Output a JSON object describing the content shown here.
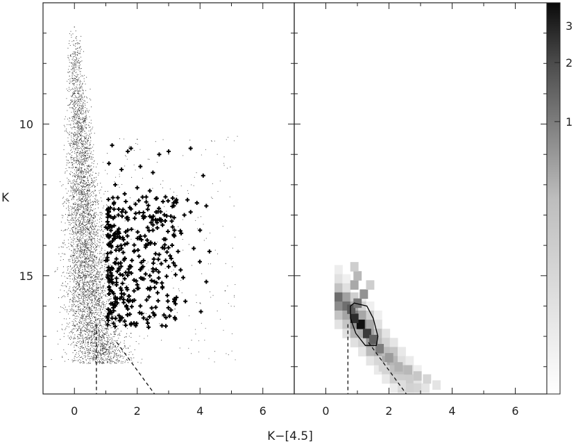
{
  "chart_data": [
    {
      "type": "scatter",
      "panel": "left",
      "title": "",
      "xlabel": "K−[4.5]",
      "ylabel": "K",
      "xlim": [
        -1,
        7
      ],
      "ylim": [
        18.9,
        6.0
      ],
      "y_inverted": true,
      "x_ticks": [
        0,
        2,
        4,
        6
      ],
      "y_ticks": [
        10,
        15
      ],
      "grid": false,
      "series": [
        {
          "marker": "small-dot",
          "color": "#555555",
          "description_points": [
            [
              0.0,
              6.8
            ],
            [
              0.1,
              7.5
            ],
            [
              -0.1,
              8.2
            ],
            [
              0.2,
              8.8
            ],
            [
              0.0,
              9.4
            ],
            [
              0.3,
              9.9
            ],
            [
              0.1,
              10.4
            ],
            [
              0.4,
              10.8
            ],
            [
              -0.2,
              11.2
            ],
            [
              0.2,
              11.6
            ],
            [
              0.5,
              12.0
            ],
            [
              0.0,
              12.4
            ],
            [
              0.3,
              12.8
            ],
            [
              0.6,
              13.1
            ],
            [
              -0.3,
              13.5
            ],
            [
              0.1,
              13.8
            ],
            [
              0.4,
              14.1
            ],
            [
              0.7,
              14.4
            ],
            [
              0.0,
              14.7
            ],
            [
              0.3,
              15.0
            ],
            [
              0.6,
              15.3
            ],
            [
              -0.2,
              15.6
            ],
            [
              0.2,
              15.9
            ],
            [
              0.5,
              16.2
            ],
            [
              0.8,
              16.5
            ],
            [
              0.1,
              16.8
            ],
            [
              0.4,
              17.1
            ],
            [
              0.9,
              17.4
            ],
            [
              1.2,
              17.2
            ],
            [
              1.8,
              16.9
            ],
            [
              2.5,
              16.4
            ],
            [
              3.2,
              16.1
            ],
            [
              4.0,
              15.9
            ],
            [
              4.8,
              15.5
            ],
            [
              2.0,
              10.5
            ],
            [
              3.0,
              11.0
            ]
          ]
        },
        {
          "marker": "plus",
          "color": "#000000",
          "points": [
            [
              1.2,
              10.7
            ],
            [
              1.7,
              10.9
            ],
            [
              1.8,
              10.8
            ],
            [
              2.7,
              11.0
            ],
            [
              3.0,
              10.9
            ],
            [
              3.7,
              10.8
            ],
            [
              1.1,
              11.3
            ],
            [
              1.5,
              11.5
            ],
            [
              2.1,
              11.4
            ],
            [
              2.5,
              11.6
            ],
            [
              4.1,
              11.7
            ],
            [
              1.3,
              12.0
            ],
            [
              1.6,
              12.3
            ],
            [
              2.0,
              12.1
            ],
            [
              2.4,
              12.2
            ],
            [
              2.9,
              12.4
            ],
            [
              3.6,
              12.5
            ],
            [
              3.9,
              12.6
            ],
            [
              4.2,
              12.7
            ],
            [
              1.1,
              12.9
            ],
            [
              1.4,
              13.0
            ],
            [
              1.8,
              12.8
            ],
            [
              2.2,
              13.1
            ],
            [
              2.6,
              12.9
            ],
            [
              3.1,
              13.2
            ],
            [
              3.5,
              13.0
            ],
            [
              3.7,
              12.9
            ],
            [
              1.0,
              13.4
            ],
            [
              1.3,
              13.6
            ],
            [
              1.7,
              13.5
            ],
            [
              2.1,
              13.7
            ],
            [
              2.5,
              13.5
            ],
            [
              2.9,
              13.8
            ],
            [
              3.4,
              13.6
            ],
            [
              4.0,
              13.5
            ],
            [
              1.1,
              14.0
            ],
            [
              1.5,
              14.1
            ],
            [
              1.9,
              14.2
            ],
            [
              2.3,
              14.0
            ],
            [
              2.7,
              14.3
            ],
            [
              3.3,
              14.2
            ],
            [
              3.8,
              14.1
            ],
            [
              4.3,
              14.2
            ],
            [
              1.0,
              14.5
            ],
            [
              1.4,
              14.6
            ],
            [
              1.8,
              14.7
            ],
            [
              2.2,
              14.5
            ],
            [
              2.6,
              14.8
            ],
            [
              3.0,
              14.7
            ],
            [
              4.2,
              15.2
            ],
            [
              1.2,
              15.0
            ],
            [
              1.6,
              15.1
            ],
            [
              2.0,
              15.3
            ],
            [
              2.4,
              15.0
            ],
            [
              2.8,
              15.4
            ],
            [
              1.1,
              15.6
            ],
            [
              1.5,
              15.7
            ],
            [
              1.9,
              15.5
            ],
            [
              2.3,
              15.8
            ],
            [
              3.2,
              15.8
            ],
            [
              1.3,
              16.0
            ],
            [
              1.7,
              16.1
            ],
            [
              2.1,
              16.0
            ],
            [
              1.2,
              16.4
            ],
            [
              1.6,
              16.5
            ]
          ]
        }
      ],
      "reference_lines": [
        {
          "style": "dashed",
          "points": [
            [
              0.7,
              16.6
            ],
            [
              0.7,
              18.9
            ]
          ]
        },
        {
          "style": "dashed",
          "points": [
            [
              1.35,
              17.2
            ],
            [
              2.55,
              18.9
            ]
          ]
        }
      ]
    },
    {
      "type": "heatmap",
      "panel": "right",
      "title": "",
      "xlabel": "K−[4.5]",
      "ylabel": "",
      "xlim": [
        -1,
        7
      ],
      "ylim": [
        18.9,
        6.0
      ],
      "y_inverted": true,
      "x_ticks": [
        0,
        2,
        4,
        6
      ],
      "y_ticks": [
        10,
        15
      ],
      "grid": false,
      "contour": "black contour around the densest region near K−[4.5]≈1, K≈16.6",
      "colorbar": {
        "ticks": [
          1,
          2,
          3
        ],
        "tick_labels": [
          "1",
          "2",
          "3"
        ],
        "colormap": "white-to-black grayscale",
        "vmax_approx": 3.2
      },
      "cells": [
        {
          "x": 1.1,
          "y": 16.6,
          "v": 3.2
        },
        {
          "x": 0.9,
          "y": 16.4,
          "v": 2.8
        },
        {
          "x": 1.3,
          "y": 16.9,
          "v": 2.6
        },
        {
          "x": 0.8,
          "y": 16.1,
          "v": 2.2
        },
        {
          "x": 1.5,
          "y": 17.1,
          "v": 2.1
        },
        {
          "x": 1.0,
          "y": 15.9,
          "v": 1.8
        },
        {
          "x": 1.7,
          "y": 17.4,
          "v": 1.7
        },
        {
          "x": 1.2,
          "y": 15.6,
          "v": 1.4
        },
        {
          "x": 2.0,
          "y": 17.7,
          "v": 1.3
        },
        {
          "x": 0.9,
          "y": 15.3,
          "v": 1.1
        },
        {
          "x": 2.3,
          "y": 18.0,
          "v": 1.0
        },
        {
          "x": 1.0,
          "y": 15.0,
          "v": 0.9
        },
        {
          "x": 2.6,
          "y": 18.1,
          "v": 0.9
        },
        {
          "x": 2.9,
          "y": 18.3,
          "v": 0.7
        },
        {
          "x": 0.9,
          "y": 14.7,
          "v": 0.6
        },
        {
          "x": 1.4,
          "y": 15.3,
          "v": 0.6
        },
        {
          "x": 3.2,
          "y": 18.4,
          "v": 0.5
        },
        {
          "x": 1.8,
          "y": 18.0,
          "v": 0.5
        },
        {
          "x": 2.4,
          "y": 18.6,
          "v": 0.4
        },
        {
          "x": 3.5,
          "y": 18.6,
          "v": 0.3
        }
      ],
      "reference_lines": [
        {
          "style": "dashed",
          "points": [
            [
              0.7,
              16.6
            ],
            [
              0.7,
              18.9
            ]
          ]
        },
        {
          "style": "dashed",
          "points": [
            [
              1.35,
              17.2
            ],
            [
              2.55,
              18.9
            ]
          ]
        }
      ]
    }
  ]
}
